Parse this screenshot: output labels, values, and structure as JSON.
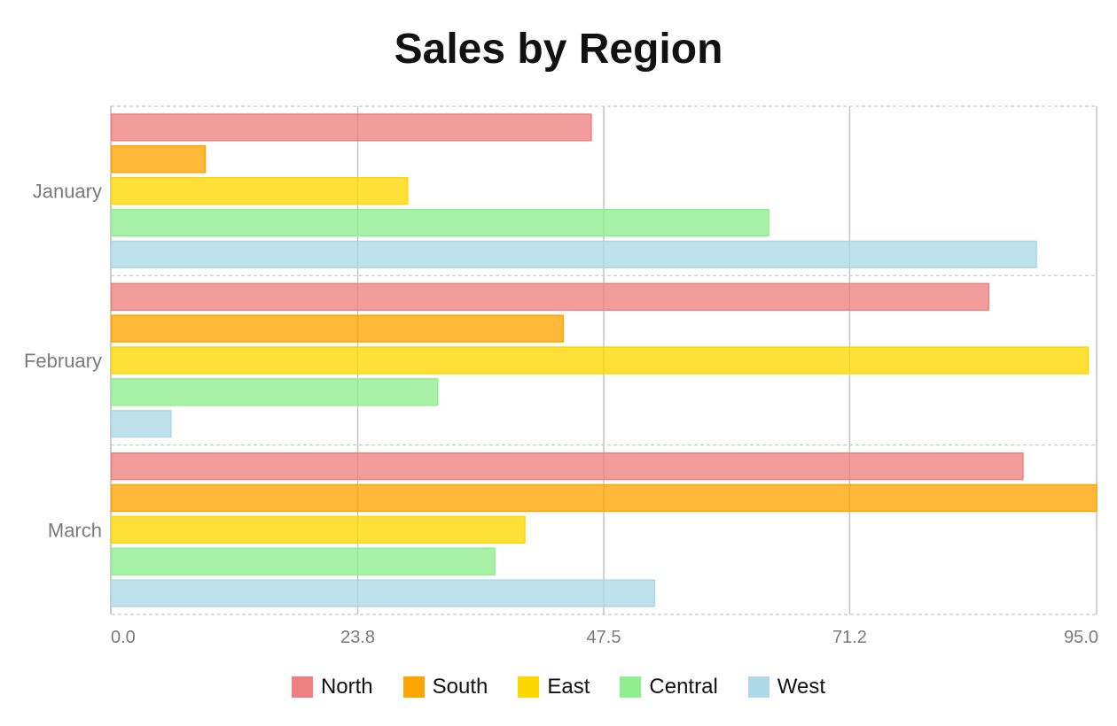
{
  "chart_data": {
    "type": "bar",
    "orientation": "horizontal",
    "title": "Sales by Region",
    "categories": [
      "January",
      "February",
      "March"
    ],
    "series": [
      {
        "name": "North",
        "color": "#f08080",
        "values": [
          46.3,
          84.6,
          87.9
        ]
      },
      {
        "name": "South",
        "color": "#ffa500",
        "values": [
          9.1,
          43.6,
          95.0
        ]
      },
      {
        "name": "East",
        "color": "#ffd700",
        "values": [
          28.6,
          94.2,
          39.9
        ]
      },
      {
        "name": "Central",
        "color": "#90ee90",
        "values": [
          63.4,
          31.5,
          37.0
        ]
      },
      {
        "name": "West",
        "color": "#add8e6",
        "values": [
          89.2,
          5.8,
          52.4
        ]
      }
    ],
    "xlim": [
      0,
      95.0
    ],
    "xticks": [
      "0.0",
      "23.8",
      "47.5",
      "71.2",
      "95.0"
    ],
    "xlabel": "",
    "ylabel": "",
    "grid": true,
    "legend": "bottom"
  }
}
